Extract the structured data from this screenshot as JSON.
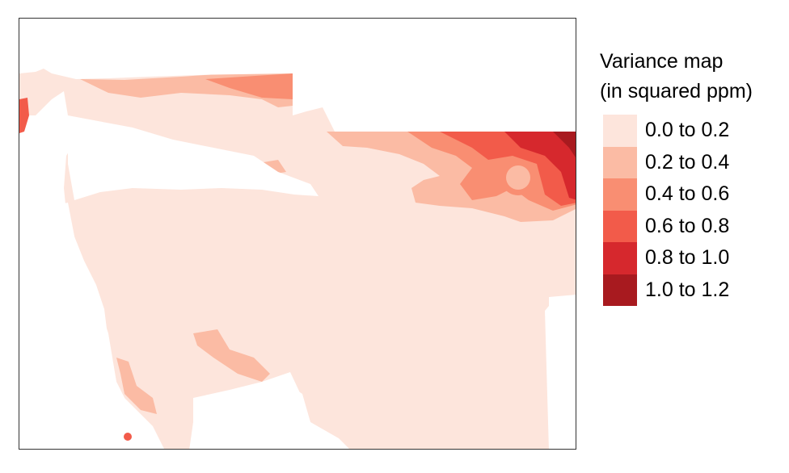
{
  "legend": {
    "title_line1": "Variance map",
    "title_line2": "(in squared ppm)",
    "classes": [
      {
        "label": "0.0 to 0.2",
        "color": "#fde5dc"
      },
      {
        "label": "0.2 to 0.4",
        "color": "#fbbba4"
      },
      {
        "label": "0.4 to 0.6",
        "color": "#f98e72"
      },
      {
        "label": "0.6 to 0.8",
        "color": "#f25b4a"
      },
      {
        "label": "0.8 to 1.0",
        "color": "#d6282d"
      },
      {
        "label": "1.0 to 1.2",
        "color": "#a81a1f"
      }
    ]
  },
  "map": {
    "background_color": "#ffffff",
    "frame_color": "#333333"
  }
}
